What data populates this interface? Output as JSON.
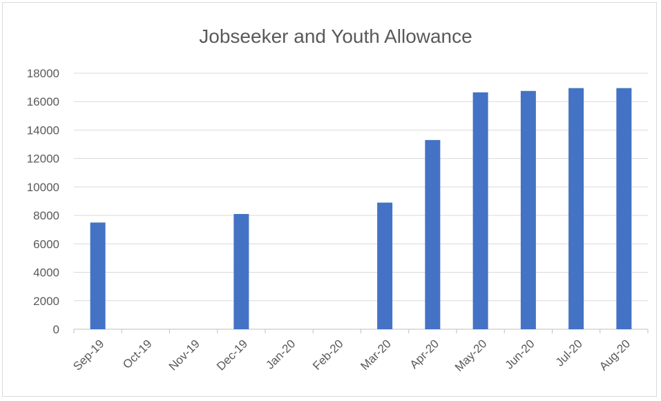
{
  "chart_data": {
    "type": "bar",
    "title": "Jobseeker and Youth Allowance",
    "xlabel": "",
    "ylabel": "",
    "categories": [
      "Sep-19",
      "Oct-19",
      "Nov-19",
      "Dec-19",
      "Jan-20",
      "Feb-20",
      "Mar-20",
      "Apr-20",
      "May-20",
      "Jun-20",
      "Jul-20",
      "Aug-20"
    ],
    "series": [
      {
        "values": [
          7500,
          null,
          null,
          8100,
          null,
          null,
          8900,
          13300,
          16650,
          16750,
          16950,
          16950
        ]
      }
    ],
    "ylim": [
      0,
      18000
    ],
    "yticks": [
      0,
      2000,
      4000,
      6000,
      8000,
      10000,
      12000,
      14000,
      16000,
      18000
    ],
    "grid": true,
    "legend": "none",
    "colors": {
      "bar": "#4472c4",
      "grid": "#d9d9d9",
      "text": "#595959"
    }
  }
}
